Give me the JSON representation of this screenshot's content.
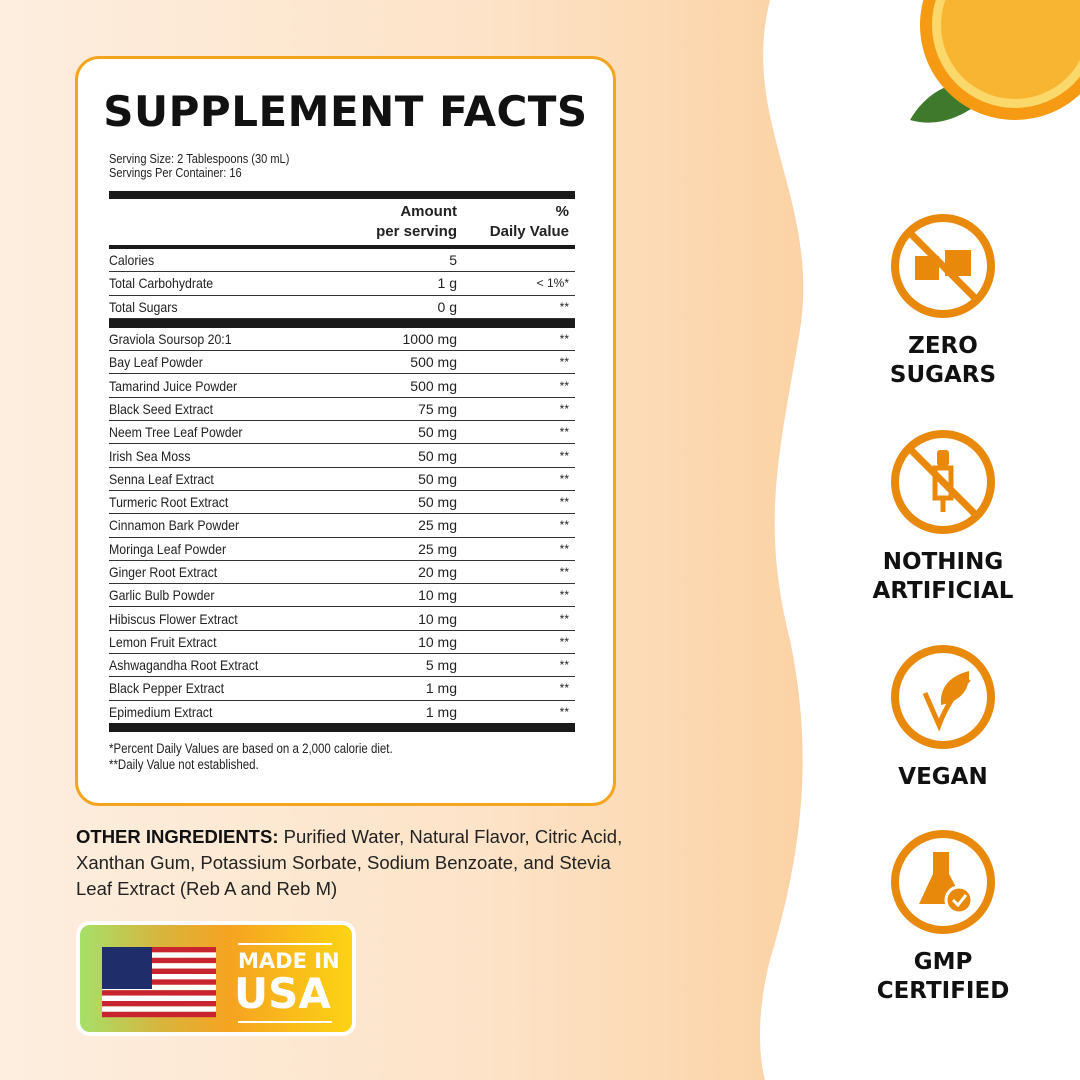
{
  "facts": {
    "title": "SUPPLEMENT FACTS",
    "serving_size": "Serving Size: 2 Tablespoons (30 mL)",
    "servings_per_container": "Servings Per Container: 16",
    "col_amount_1": "Amount",
    "col_amount_2": "per serving",
    "col_dv_1": "%",
    "col_dv_2": "Daily Value",
    "basic_rows": [
      {
        "name": "Calories",
        "amount": "5",
        "dv": ""
      },
      {
        "name": "Total Carbohydrate",
        "amount": "1 g",
        "dv": "< 1%*"
      },
      {
        "name": "Total Sugars",
        "amount": "0 g",
        "dv": "**"
      }
    ],
    "ingredient_rows": [
      {
        "name": "Graviola Soursop 20:1",
        "amount": "1000 mg",
        "dv": "**"
      },
      {
        "name": "Bay Leaf Powder",
        "amount": "500 mg",
        "dv": "**"
      },
      {
        "name": "Tamarind Juice Powder",
        "amount": "500 mg",
        "dv": "**"
      },
      {
        "name": "Black Seed Extract",
        "amount": "75 mg",
        "dv": "**"
      },
      {
        "name": "Neem Tree Leaf Powder",
        "amount": "50 mg",
        "dv": "**"
      },
      {
        "name": "Irish Sea Moss",
        "amount": "50 mg",
        "dv": "**"
      },
      {
        "name": "Senna Leaf Extract",
        "amount": "50 mg",
        "dv": "**"
      },
      {
        "name": "Turmeric Root Extract",
        "amount": "50 mg",
        "dv": "**"
      },
      {
        "name": "Cinnamon Bark Powder",
        "amount": "25 mg",
        "dv": "**"
      },
      {
        "name": "Moringa Leaf Powder",
        "amount": "25 mg",
        "dv": "**"
      },
      {
        "name": "Ginger Root Extract",
        "amount": "20 mg",
        "dv": "**"
      },
      {
        "name": "Garlic Bulb Powder",
        "amount": "10 mg",
        "dv": "**"
      },
      {
        "name": "Hibiscus Flower Extract",
        "amount": "10 mg",
        "dv": "**"
      },
      {
        "name": "Lemon Fruit Extract",
        "amount": "10 mg",
        "dv": "**"
      },
      {
        "name": "Ashwagandha Root Extract",
        "amount": "5 mg",
        "dv": "**"
      },
      {
        "name": "Black Pepper Extract",
        "amount": "1 mg",
        "dv": "**"
      },
      {
        "name": "Epimedium Extract",
        "amount": "1 mg",
        "dv": "**"
      }
    ],
    "footnote_1": "*Percent Daily Values are based on a 2,000 calorie diet.",
    "footnote_2": "**Daily Value not established."
  },
  "other_ingredients": {
    "label": "OTHER INGREDIENTS:",
    "text": " Purified Water, Natural Flavor, Citric Acid, Xanthan Gum, Potassium Sorbate, Sodium Benzoate, and Stevia Leaf Extract (Reb A and Reb M)"
  },
  "made_in_usa": {
    "line1": "MADE IN",
    "line2": "USA",
    "icon": "us-flag-icon"
  },
  "badges": [
    {
      "line1": "ZERO",
      "line2": "SUGARS",
      "icon": "no-sugar-cubes-icon"
    },
    {
      "line1": "NOTHING",
      "line2": "ARTIFICIAL",
      "icon": "no-dropper-icon"
    },
    {
      "line1": "VEGAN",
      "line2": "",
      "icon": "leaf-check-icon"
    },
    {
      "line1": "GMP",
      "line2": "CERTIFIED",
      "icon": "flask-check-icon"
    }
  ],
  "colors": {
    "accent": "#e8890c",
    "card_border": "#f4a51f"
  }
}
